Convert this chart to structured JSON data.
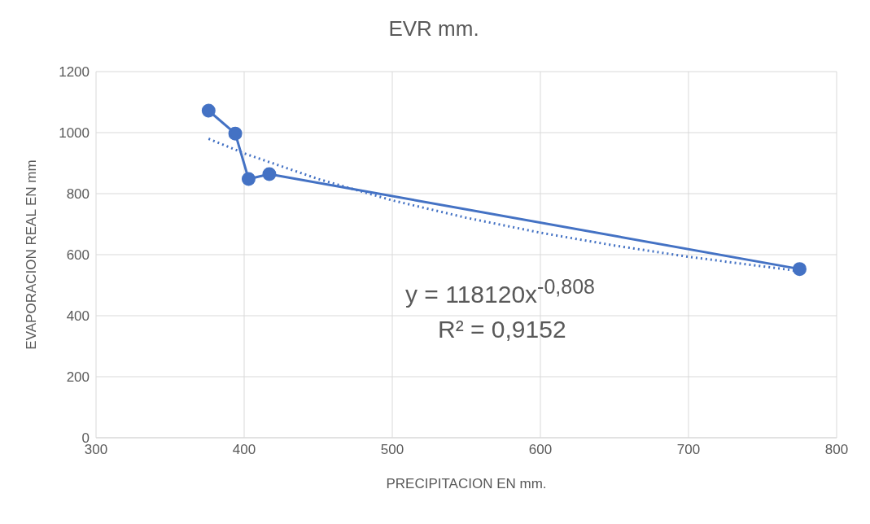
{
  "chart_data": {
    "type": "line",
    "title": "EVR mm.",
    "xlabel": "PRECIPITACION EN mm.",
    "ylabel": "EVAPORACION REAL EN mm",
    "series": [
      {
        "color": "#4472c4",
        "x": [
          376,
          394,
          403,
          417,
          775
        ],
        "values": [
          1072,
          997,
          848,
          864,
          553
        ],
        "marker": "circle",
        "line_style": "solid"
      },
      {
        "color": "#4472c4",
        "x": [
          376,
          400,
          450,
          500,
          550,
          600,
          650,
          700,
          775
        ],
        "values": [
          980,
          932,
          848,
          778,
          721,
          672,
          630,
          593,
          546
        ],
        "marker": "none",
        "line_style": "dotted"
      }
    ],
    "xlim": [
      300,
      800
    ],
    "xticks": [
      300,
      400,
      500,
      600,
      700,
      800
    ],
    "ylim": [
      0,
      1200
    ],
    "yticks": [
      0,
      200,
      400,
      600,
      800,
      1000,
      1200
    ],
    "grid": true,
    "annotations": [
      "y = 118120x$^{-0,808}$",
      "R² = 0,9152"
    ]
  }
}
